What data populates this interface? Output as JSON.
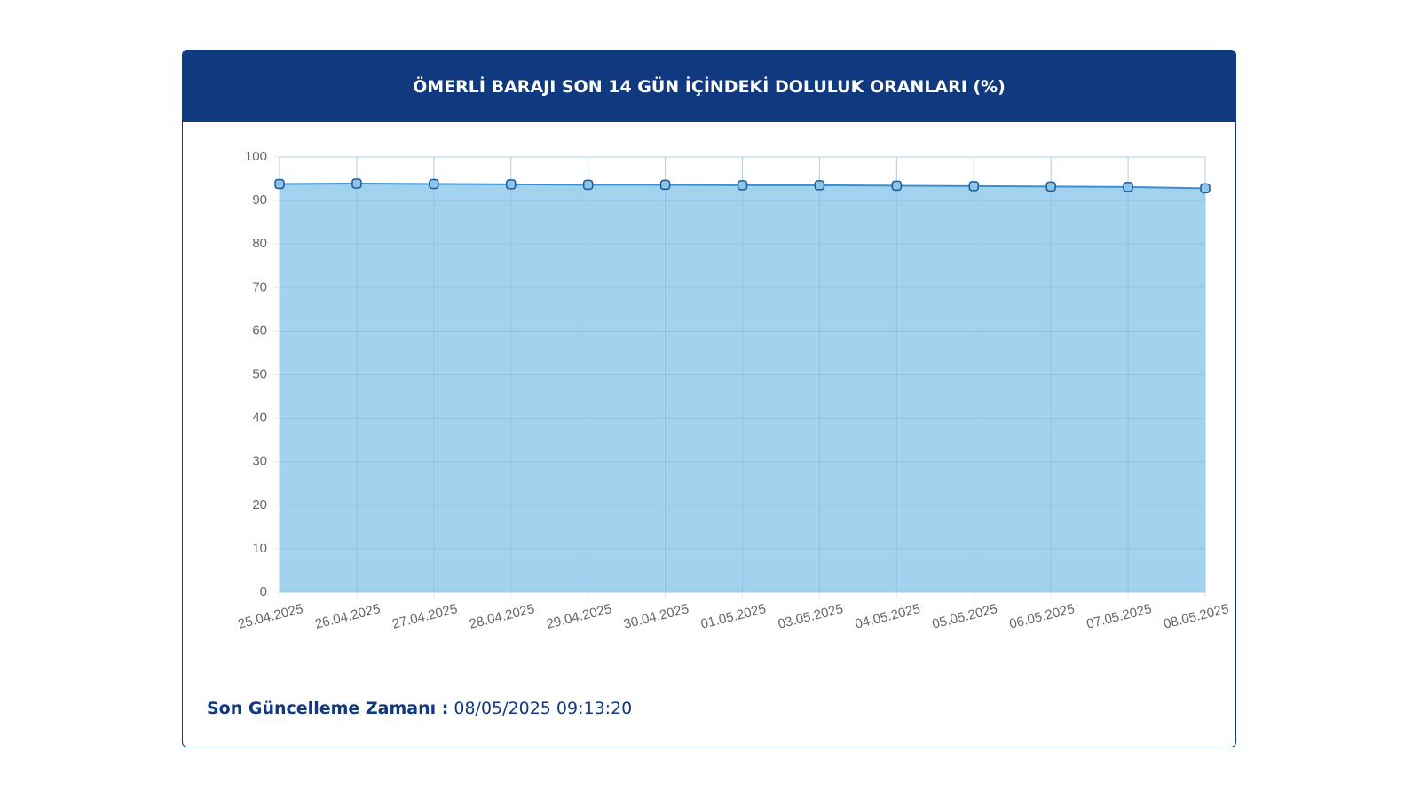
{
  "chart_data": {
    "type": "area",
    "title": "ÖMERLİ BARAJI SON 14 GÜN İÇİNDEKİ DOLULUK ORANLARI (%)",
    "categories": [
      "25.04.2025",
      "26.04.2025",
      "27.04.2025",
      "28.04.2025",
      "29.04.2025",
      "30.04.2025",
      "01.05.2025",
      "03.05.2025",
      "04.05.2025",
      "05.05.2025",
      "06.05.2025",
      "07.05.2025",
      "08.05.2025"
    ],
    "values": [
      93.8,
      93.9,
      93.8,
      93.7,
      93.6,
      93.6,
      93.5,
      93.5,
      93.4,
      93.3,
      93.2,
      93.1,
      92.8
    ],
    "color": "#3b8fd0",
    "fill": "#9dd0ec",
    "ylim": [
      0,
      100
    ],
    "yticks": [
      0,
      10,
      20,
      30,
      40,
      50,
      60,
      70,
      80,
      90,
      100
    ],
    "grid": true
  },
  "footer": {
    "label": "Son Güncelleme Zamanı :",
    "value": "08/05/2025 09:13:20"
  }
}
